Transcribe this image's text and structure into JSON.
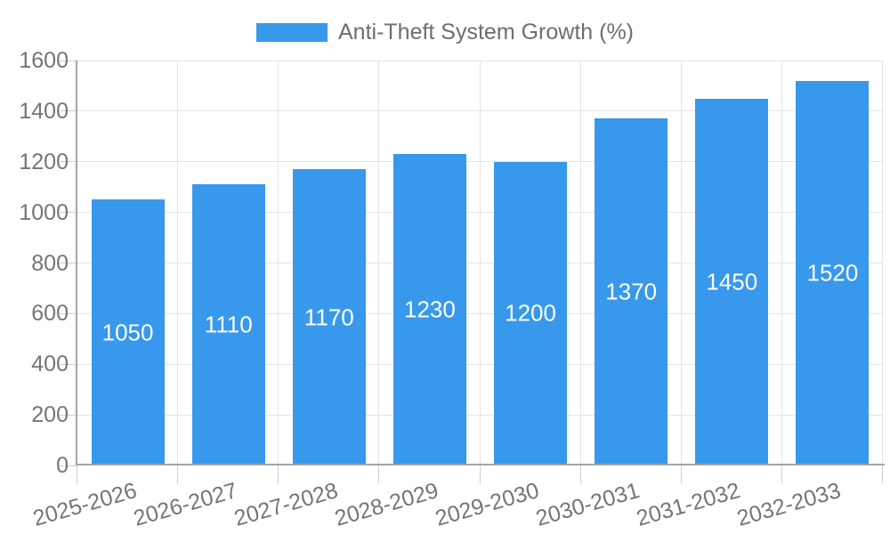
{
  "chart_data": {
    "type": "bar",
    "title": "Anti-Theft System Growth (%)",
    "categories": [
      "2025-2026",
      "2026-2027",
      "2027-2028",
      "2028-2029",
      "2029-2030",
      "2030-2031",
      "2031-2032",
      "2032-2033"
    ],
    "values": [
      1050,
      1110,
      1170,
      1230,
      1200,
      1370,
      1450,
      1520
    ],
    "series": [
      {
        "name": "Anti-Theft System Growth (%)",
        "values": [
          1050,
          1110,
          1170,
          1230,
          1200,
          1370,
          1450,
          1520
        ]
      }
    ],
    "ylim": [
      0,
      1600
    ],
    "yticks": [
      0,
      200,
      400,
      600,
      800,
      1000,
      1200,
      1400,
      1600
    ],
    "grid": true,
    "legend_position": "top-center",
    "value_label_position": "inside-center",
    "colors": {
      "bar": "#3898EC",
      "value_label": "#FFFFFF",
      "axis_text": "#757575",
      "legend_text": "#6E6E6E",
      "gridline": "#E4E4E4",
      "tick": "#CFCFCF",
      "axis_line": "#A5A5A5",
      "background": "#FFFFFF"
    }
  }
}
